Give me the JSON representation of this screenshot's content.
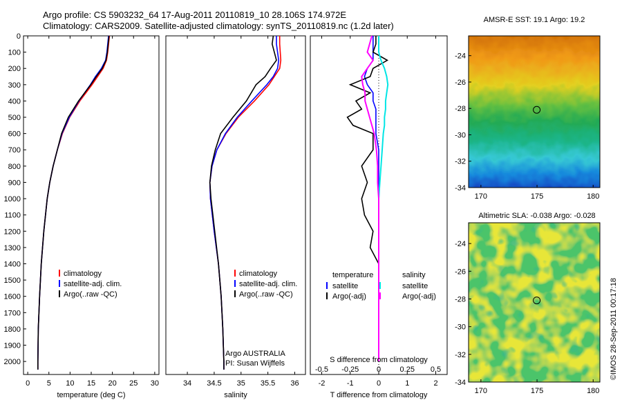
{
  "header": {
    "line1": "Argo profile: CS 5903232_64 17-Aug-2011 20110819_10 28.106S 174.972E",
    "line2": "Climatology: CARS2009. Satellite-adjusted climatology: synTS_20110819.nc (1.2d later)"
  },
  "colors": {
    "climatology": "#ff0000",
    "satellite": "#0000ff",
    "argo": "#000000",
    "salinity_satellite": "#00e5e5",
    "salinity_argo": "#ff00ff"
  },
  "chart_data": [
    {
      "id": "temperature",
      "type": "line",
      "xlabel": "temperature (deg C)",
      "ylabel": "",
      "xlim": [
        -1,
        31
      ],
      "ylim": [
        2080,
        0
      ],
      "xticks": [
        "0",
        "5",
        "10",
        "15",
        "20",
        "25",
        "30"
      ],
      "yticks": [
        "0",
        "100",
        "200",
        "300",
        "400",
        "500",
        "600",
        "700",
        "800",
        "900",
        "1000",
        "1100",
        "1200",
        "1300",
        "1400",
        "1500",
        "1600",
        "1700",
        "1800",
        "1900",
        "2000"
      ],
      "depth": [
        0,
        50,
        100,
        150,
        200,
        250,
        300,
        400,
        500,
        600,
        700,
        800,
        900,
        1000,
        1200,
        1400,
        1600,
        1800,
        2000,
        2050
      ],
      "legend": [
        "climatology",
        "satellite-adj. clim.",
        "Argo(..raw -QC)"
      ],
      "series": [
        {
          "name": "climatology",
          "color": "#ff0000",
          "values": [
            19.3,
            19.1,
            18.9,
            18.6,
            17.8,
            16.5,
            15.2,
            12.3,
            9.9,
            8.2,
            7.0,
            6.0,
            5.2,
            4.6,
            3.8,
            3.2,
            2.8,
            2.5,
            2.4,
            2.4
          ]
        },
        {
          "name": "satellite-adj. clim.",
          "color": "#0000ff",
          "values": [
            19.1,
            18.9,
            18.7,
            18.4,
            17.4,
            16.0,
            14.8,
            12.1,
            9.8,
            8.1,
            7.0,
            6.0,
            5.2,
            4.6,
            3.8,
            3.2,
            2.8,
            2.5,
            2.4,
            2.4
          ]
        },
        {
          "name": "Argo(..raw -QC)",
          "color": "#000000",
          "values": [
            19.2,
            19.0,
            18.8,
            18.5,
            17.6,
            16.2,
            14.9,
            12.0,
            9.6,
            8.0,
            7.0,
            6.0,
            5.2,
            4.6,
            3.8,
            3.2,
            2.8,
            2.5,
            2.4,
            2.4
          ]
        }
      ]
    },
    {
      "id": "salinity",
      "type": "line",
      "xlabel": "salinity",
      "xlim": [
        33.6,
        36.2
      ],
      "ylim": [
        2080,
        0
      ],
      "xticks": [
        "34",
        "34.5",
        "35",
        "35.5",
        "36"
      ],
      "depth": [
        0,
        50,
        100,
        150,
        200,
        250,
        300,
        400,
        500,
        600,
        700,
        800,
        900,
        1000,
        1200,
        1400,
        1600,
        1800,
        2000,
        2050
      ],
      "legend": [
        "climatology",
        "satellite-adj. clim.",
        "Argo(..raw -QC)"
      ],
      "annotation": [
        "Argo AUSTRALIA",
        "PI: Susan Wijffels"
      ],
      "series": [
        {
          "name": "climatology",
          "color": "#ff0000",
          "values": [
            35.72,
            35.72,
            35.73,
            35.74,
            35.72,
            35.62,
            35.52,
            35.25,
            34.95,
            34.72,
            34.55,
            34.46,
            34.42,
            34.43,
            34.5,
            34.58,
            34.63,
            34.66,
            34.68,
            34.68
          ]
        },
        {
          "name": "satellite-adj. clim.",
          "color": "#0000ff",
          "values": [
            35.66,
            35.66,
            35.68,
            35.7,
            35.68,
            35.6,
            35.48,
            35.2,
            34.93,
            34.71,
            34.55,
            34.46,
            34.42,
            34.43,
            34.5,
            34.58,
            34.63,
            34.66,
            34.68,
            34.68
          ]
        },
        {
          "name": "Argo(..raw -QC)",
          "color": "#000000",
          "values": [
            35.6,
            35.58,
            35.62,
            35.66,
            35.55,
            35.45,
            35.28,
            35.1,
            34.85,
            34.62,
            34.52,
            34.45,
            34.42,
            34.44,
            34.51,
            34.58,
            34.63,
            34.66,
            34.68,
            34.68
          ]
        }
      ]
    },
    {
      "id": "difference",
      "type": "line",
      "xlabel": "T difference from climatology",
      "top_label": "S difference from climatology",
      "xlim": [
        -2.4,
        2.4
      ],
      "ylim": [
        2080,
        0
      ],
      "xticks": [
        "-2",
        "-1",
        "0",
        "1",
        "2"
      ],
      "sticks": [
        "-0.5",
        "-0.25",
        "0",
        "0.25",
        "0.5"
      ],
      "depth": [
        0,
        50,
        100,
        150,
        200,
        250,
        300,
        350,
        400,
        450,
        500,
        550,
        600,
        700,
        800,
        900,
        1000,
        1100,
        1200,
        1300,
        1400,
        1600,
        1800,
        2000
      ],
      "legend_groups": [
        {
          "title": "temperature",
          "items": [
            "satellite",
            "Argo(-adj)"
          ]
        },
        {
          "title": "salinity",
          "items": [
            "satellite",
            "Argo(-adj)"
          ]
        }
      ],
      "series": [
        {
          "name": "T satellite",
          "color": "#0000ff",
          "values": [
            -0.2,
            -0.2,
            -0.2,
            -0.2,
            -0.4,
            -0.5,
            -0.4,
            -0.2,
            -0.2,
            -0.1,
            -0.1,
            -0.1,
            -0.1,
            0.0,
            0.0,
            0.0,
            0.0,
            0.0,
            0.0,
            0.0,
            0.0,
            0.0,
            0.0,
            0.0
          ]
        },
        {
          "name": "T Argo(-adj)",
          "color": "#000000",
          "values": [
            -0.1,
            -0.1,
            -0.2,
            0.3,
            -0.2,
            -0.3,
            -1.0,
            -0.3,
            -0.8,
            -0.6,
            -1.1,
            -0.9,
            -0.2,
            -0.2,
            -0.6,
            -0.4,
            -0.6,
            -0.5,
            -0.2,
            -0.3,
            0.0,
            0.0,
            0.0,
            0.0
          ]
        },
        {
          "name": "S satellite",
          "color": "#00e5e5",
          "values": [
            0.0,
            0.0,
            0.0,
            0.02,
            0.05,
            0.07,
            0.08,
            0.07,
            0.06,
            0.06,
            0.05,
            0.05,
            0.04,
            0.03,
            0.02,
            0.01,
            0.0,
            0.0,
            0.0,
            0.0,
            0.0,
            0.0,
            0.0,
            0.0
          ]
        },
        {
          "name": "S Argo(-adj)",
          "color": "#ff00ff",
          "values": [
            -0.06,
            -0.08,
            -0.1,
            -0.05,
            -0.1,
            -0.15,
            -0.14,
            -0.12,
            -0.12,
            -0.1,
            -0.08,
            -0.06,
            -0.04,
            -0.02,
            -0.01,
            -0.01,
            0.0,
            0.0,
            0.0,
            0.0,
            0.0,
            0.0,
            0.0,
            0.0
          ]
        }
      ]
    },
    {
      "id": "sst_map",
      "type": "heatmap",
      "title": "AMSR-E SST: 19.1 Argo: 19.2",
      "xlim": [
        168.9,
        180.6
      ],
      "ylim": [
        -34.0,
        -22.5
      ],
      "xticks": [
        "170",
        "175",
        "180"
      ],
      "yticks": [
        "-24",
        "-26",
        "-28",
        "-30",
        "-32",
        "-34"
      ],
      "argo_position": [
        174.972,
        -28.106
      ]
    },
    {
      "id": "sla_map",
      "type": "heatmap",
      "title": "Altimetric SLA: -0.038 Argo: -0.028",
      "xlim": [
        168.9,
        180.6
      ],
      "ylim": [
        -34.0,
        -22.5
      ],
      "xticks": [
        "170",
        "175",
        "180"
      ],
      "yticks": [
        "-24",
        "-26",
        "-28",
        "-30",
        "-32",
        "-34"
      ],
      "argo_position": [
        174.972,
        -28.106
      ]
    }
  ],
  "credit": "©IMOS 28-Sep-2011 00:17:18"
}
